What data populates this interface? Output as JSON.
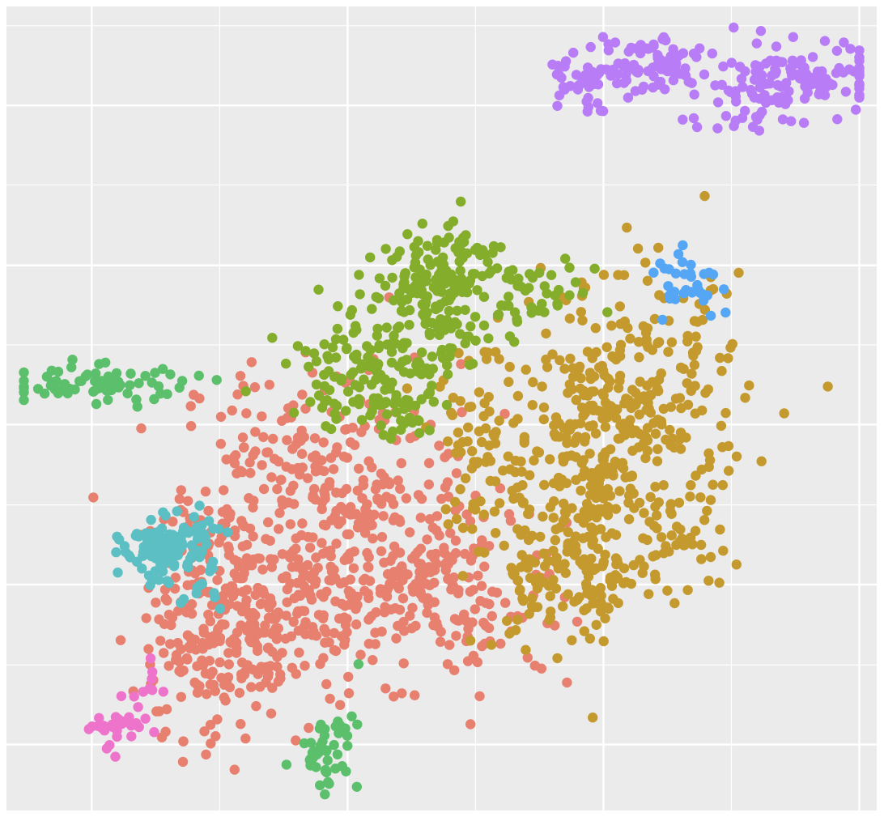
{
  "chart_data": {
    "type": "scatter",
    "title": "",
    "xlabel": "",
    "ylabel": "",
    "grid": true,
    "legend": "none",
    "xlim": [
      0,
      1
    ],
    "ylim": [
      0,
      1
    ],
    "x_major_ticks": [
      0.098,
      0.392,
      0.686,
      0.98
    ],
    "x_minor_ticks": [
      0.245,
      0.539,
      0.833
    ],
    "y_major_ticks": [
      0.082,
      0.281,
      0.48,
      0.678,
      0.877
    ],
    "y_minor_ticks": [
      0.181,
      0.38,
      0.579,
      0.778,
      0.976
    ],
    "colors": {
      "panel_bg": "#EBEBEB",
      "grid": "#FFFFFF"
    },
    "series": [
      {
        "color": "#E8806F",
        "points": [
          {
            "cx": 0.36,
            "cy": 0.4,
            "sx": 0.08,
            "sy": 0.08,
            "n": 260
          },
          {
            "cx": 0.44,
            "cy": 0.3,
            "sx": 0.07,
            "sy": 0.06,
            "n": 200
          },
          {
            "cx": 0.3,
            "cy": 0.22,
            "sx": 0.06,
            "sy": 0.05,
            "n": 180
          },
          {
            "cx": 0.22,
            "cy": 0.18,
            "sx": 0.04,
            "sy": 0.05,
            "n": 90
          },
          {
            "cx": 0.55,
            "cy": 0.24,
            "sx": 0.05,
            "sy": 0.04,
            "n": 60
          },
          {
            "cx": 0.25,
            "cy": 0.3,
            "sx": 0.05,
            "sy": 0.05,
            "n": 80
          }
        ]
      },
      {
        "color": "#C49A2F",
        "points": [
          {
            "cx": 0.67,
            "cy": 0.42,
            "sx": 0.05,
            "sy": 0.09,
            "n": 220
          },
          {
            "cx": 0.73,
            "cy": 0.5,
            "sx": 0.06,
            "sy": 0.08,
            "n": 240
          },
          {
            "cx": 0.64,
            "cy": 0.28,
            "sx": 0.05,
            "sy": 0.04,
            "n": 110
          },
          {
            "cx": 0.55,
            "cy": 0.45,
            "sx": 0.04,
            "sy": 0.05,
            "n": 70
          },
          {
            "cx": 0.78,
            "cy": 0.34,
            "sx": 0.02,
            "sy": 0.03,
            "n": 25
          }
        ]
      },
      {
        "color": "#85AD2C",
        "points": [
          {
            "cx": 0.51,
            "cy": 0.68,
            "sx": 0.03,
            "sy": 0.03,
            "n": 90
          },
          {
            "cx": 0.48,
            "cy": 0.6,
            "sx": 0.04,
            "sy": 0.04,
            "n": 120
          },
          {
            "cx": 0.4,
            "cy": 0.55,
            "sx": 0.04,
            "sy": 0.03,
            "n": 80
          },
          {
            "cx": 0.58,
            "cy": 0.64,
            "sx": 0.05,
            "sy": 0.02,
            "n": 50
          },
          {
            "cx": 0.45,
            "cy": 0.5,
            "sx": 0.03,
            "sy": 0.02,
            "n": 40
          }
        ]
      },
      {
        "color": "#B87CF6",
        "points": [
          {
            "cx": 0.66,
            "cy": 0.91,
            "sx": 0.02,
            "sy": 0.02,
            "n": 40
          },
          {
            "cx": 0.73,
            "cy": 0.93,
            "sx": 0.04,
            "sy": 0.02,
            "n": 80
          },
          {
            "cx": 0.85,
            "cy": 0.88,
            "sx": 0.04,
            "sy": 0.02,
            "n": 40
          },
          {
            "cx": 0.93,
            "cy": 0.91,
            "sx": 0.04,
            "sy": 0.02,
            "n": 110
          }
        ]
      },
      {
        "color": "#5CBFC3",
        "points": [
          {
            "cx": 0.185,
            "cy": 0.33,
            "sx": 0.025,
            "sy": 0.018,
            "n": 110
          },
          {
            "cx": 0.2,
            "cy": 0.29,
            "sx": 0.03,
            "sy": 0.03,
            "n": 20
          }
        ]
      },
      {
        "color": "#5BBF6B",
        "points": [
          {
            "cx": 0.1,
            "cy": 0.53,
            "sx": 0.06,
            "sy": 0.012,
            "n": 70
          },
          {
            "cx": 0.37,
            "cy": 0.075,
            "sx": 0.018,
            "sy": 0.025,
            "n": 45
          }
        ]
      },
      {
        "color": "#55A6F5",
        "points": [
          {
            "cx": 0.78,
            "cy": 0.66,
            "sx": 0.02,
            "sy": 0.018,
            "n": 35
          }
        ]
      },
      {
        "color": "#EE73CB",
        "points": [
          {
            "cx": 0.13,
            "cy": 0.1,
            "sx": 0.03,
            "sy": 0.012,
            "n": 30
          },
          {
            "cx": 0.16,
            "cy": 0.15,
            "sx": 0.01,
            "sy": 0.02,
            "n": 10
          }
        ]
      }
    ]
  }
}
